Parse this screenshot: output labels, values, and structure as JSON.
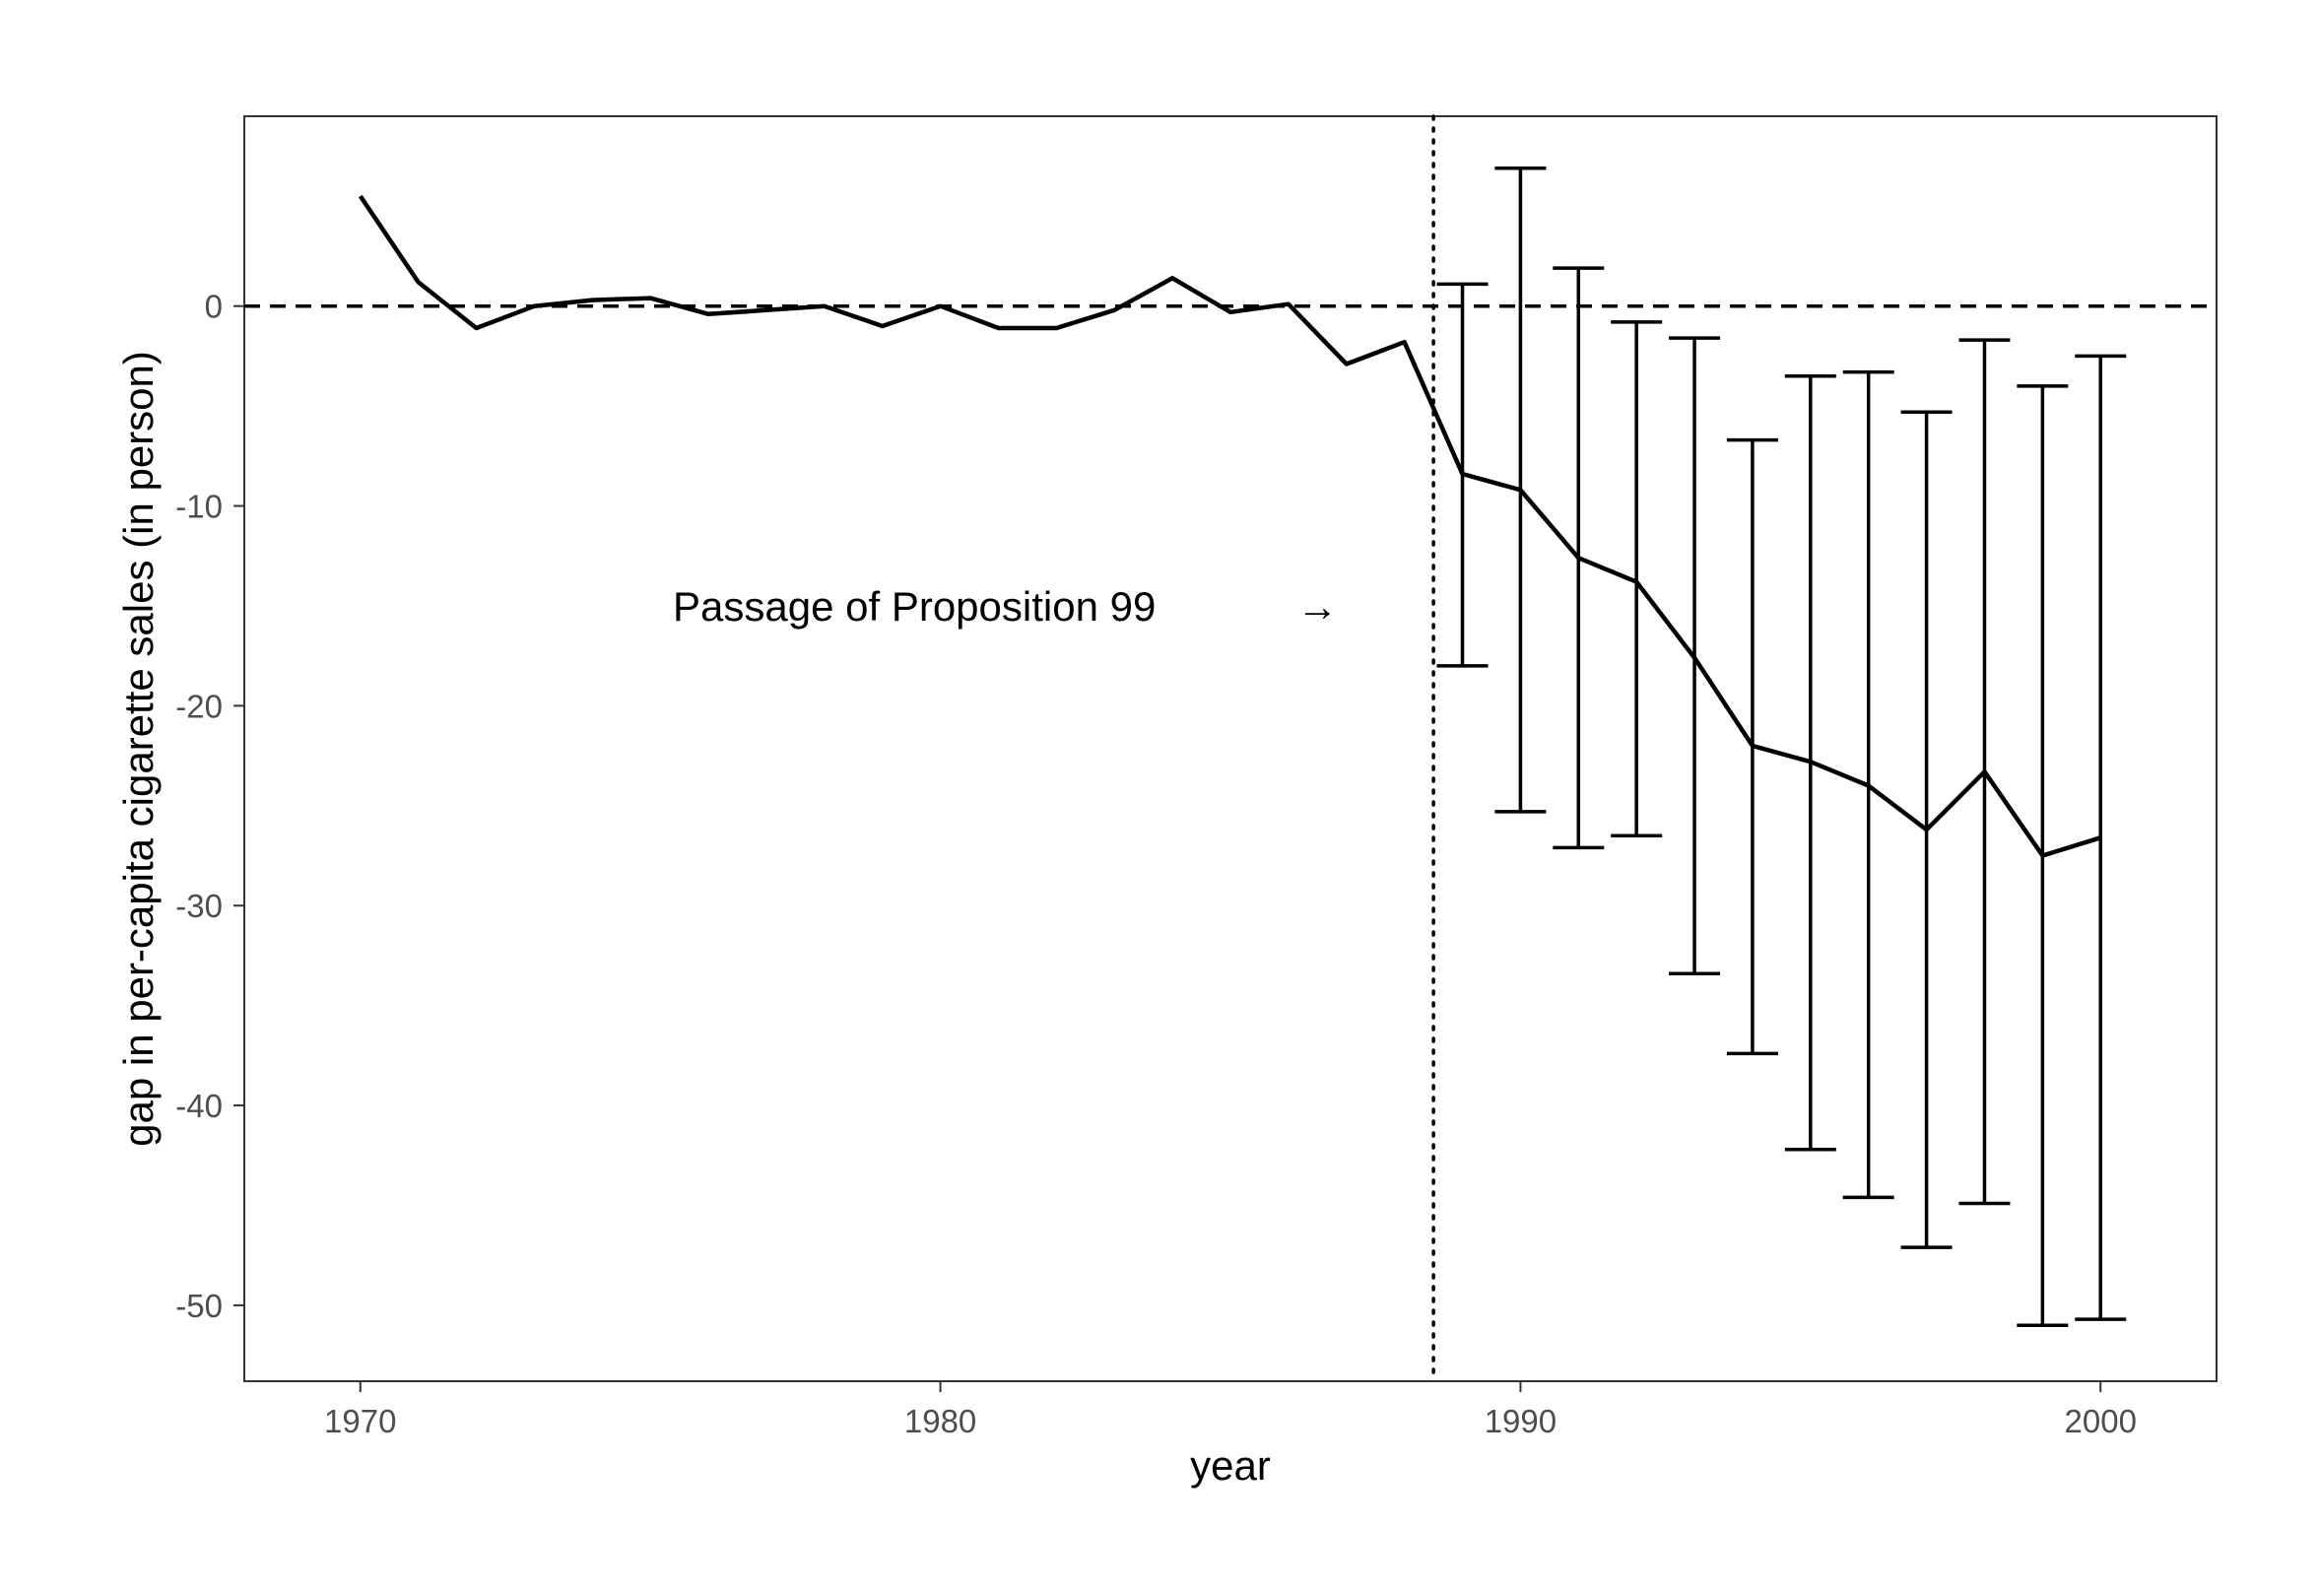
{
  "chart_data": {
    "type": "line",
    "title": "",
    "xlabel": "year",
    "ylabel": "gap in per-capita cigarette sales (in person)",
    "xlim": [
      1968,
      2002
    ],
    "ylim": [
      -53.8,
      9.5
    ],
    "x_ticks": [
      1970,
      1980,
      1990,
      2000
    ],
    "y_ticks": [
      0,
      -10,
      -20,
      -30,
      -40,
      -50
    ],
    "x_tick_labels": [
      "1970",
      "1980",
      "1990",
      "2000"
    ],
    "y_tick_labels": [
      "0",
      "-10",
      "-20",
      "-30",
      "-40",
      "-50"
    ],
    "grid": false,
    "legend": "none",
    "reference_lines": [
      {
        "axis": "y",
        "value": 0,
        "style": "dashed"
      },
      {
        "axis": "x",
        "value": 1988.5,
        "style": "dotted"
      }
    ],
    "annotation": {
      "text": "Passage of Proposition 99",
      "x": 1983.5,
      "y": -15,
      "arrow": "→",
      "arrow_x": 1986.5
    },
    "series": [
      {
        "x": [
          1970,
          1971,
          1972,
          1973,
          1974,
          1975,
          1976,
          1977,
          1978,
          1979,
          1980,
          1981,
          1982,
          1983,
          1984,
          1985,
          1986,
          1987,
          1988,
          1989,
          1990,
          1991,
          1992,
          1993,
          1994,
          1995,
          1996,
          1997,
          1998,
          1999,
          2000
        ],
        "values": [
          5.5,
          1.2,
          -1.1,
          0.0,
          0.3,
          0.4,
          -0.4,
          -0.2,
          0.0,
          -1.0,
          0.0,
          -1.1,
          -1.1,
          -0.2,
          1.4,
          -0.3,
          0.1,
          -2.9,
          -1.8,
          -8.4,
          -9.2,
          -12.6,
          -13.8,
          -17.6,
          -22.0,
          -22.8,
          -24.0,
          -26.2,
          -23.3,
          -27.5,
          -26.6
        ]
      }
    ],
    "error_bars": {
      "x": [
        1989,
        1990,
        1991,
        1992,
        1993,
        1994,
        1995,
        1996,
        1997,
        1998,
        1999,
        2000
      ],
      "lower": [
        -18.0,
        -25.3,
        -27.1,
        -26.5,
        -33.4,
        -37.4,
        -42.2,
        -44.6,
        -47.1,
        -44.9,
        -51.0,
        -50.7
      ],
      "upper": [
        1.1,
        6.9,
        1.9,
        -0.8,
        -1.6,
        -6.7,
        -3.5,
        -3.3,
        -5.3,
        -1.7,
        -4.0,
        -2.5
      ]
    }
  }
}
